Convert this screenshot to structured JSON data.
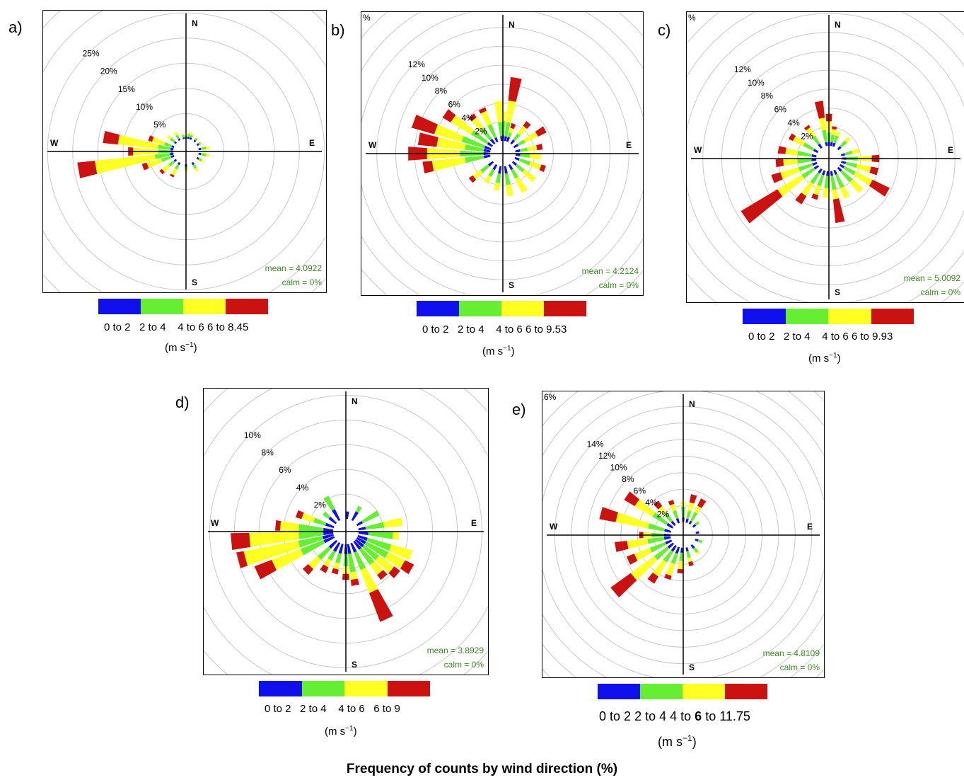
{
  "figure_title": "Frequency of counts by wind direction (%)",
  "unit_label": "(m s",
  "unit_sup": "−1",
  "unit_close": ")",
  "colors": {
    "bin1": "#1010ee",
    "bin2": "#66ee33",
    "bin3": "#ffff22",
    "bin4": "#cc1111",
    "mean_text": "#3a8a20"
  },
  "chart_data": [
    {
      "type": "windrose",
      "panel_label": "a)",
      "compass": [
        "N",
        "E",
        "S",
        "W"
      ],
      "radial_ticks": [
        "5%",
        "10%",
        "15%",
        "20%",
        "25%"
      ],
      "mean": "mean = 4.0922",
      "calm": "calm = 0%",
      "legend": [
        "0 to 2",
        "2 to 4",
        "4 to 6",
        "6 to 8.45"
      ],
      "max_pct": 27,
      "dirs": [
        {
          "deg": 0,
          "v": [
            0.3,
            0.3,
            0.2,
            0
          ]
        },
        {
          "deg": 10,
          "v": [
            0.4,
            0.6,
            0.4,
            0
          ]
        },
        {
          "deg": 20,
          "v": [
            0.4,
            0.5,
            0.3,
            0
          ]
        },
        {
          "deg": 40,
          "v": [
            0.4,
            0.4,
            0.2,
            0
          ]
        },
        {
          "deg": 60,
          "v": [
            0.4,
            0.4,
            0.2,
            0
          ]
        },
        {
          "deg": 80,
          "v": [
            0.5,
            1,
            0.6,
            0
          ]
        },
        {
          "deg": 100,
          "v": [
            0.5,
            1,
            0.6,
            0
          ]
        },
        {
          "deg": 120,
          "v": [
            0.4,
            0.6,
            0.5,
            0
          ]
        },
        {
          "deg": 150,
          "v": [
            0.5,
            0.8,
            0.6,
            0
          ]
        },
        {
          "deg": 180,
          "v": [
            0.5,
            0.6,
            0.5,
            0
          ]
        },
        {
          "deg": 210,
          "v": [
            0.5,
            1,
            1.3,
            0.4
          ]
        },
        {
          "deg": 230,
          "v": [
            0.5,
            1.3,
            1.6,
            0.6
          ]
        },
        {
          "deg": 250,
          "v": [
            0.6,
            2,
            3,
            1
          ]
        },
        {
          "deg": 260,
          "v": [
            0.7,
            3,
            12,
            3.5
          ]
        },
        {
          "deg": 270,
          "v": [
            0.5,
            2.5,
            5,
            1
          ]
        },
        {
          "deg": 280,
          "v": [
            0.6,
            2.5,
            8,
            3
          ]
        },
        {
          "deg": 290,
          "v": [
            0.5,
            1.5,
            2.5,
            0.8
          ]
        },
        {
          "deg": 310,
          "v": [
            0.4,
            1,
            0.8,
            0
          ]
        },
        {
          "deg": 330,
          "v": [
            0.4,
            0.8,
            0.6,
            0
          ]
        },
        {
          "deg": 350,
          "v": [
            0.3,
            0.5,
            0.3,
            0
          ]
        }
      ]
    },
    {
      "type": "windrose",
      "panel_label": "b)",
      "compass": [
        "N",
        "E",
        "S",
        "W"
      ],
      "radial_ticks": [
        "2%",
        "4%",
        "6%",
        "8%",
        "10%",
        "12%"
      ],
      "corner_tick": "%",
      "mean": "mean = 4.2124",
      "calm": "calm = 0%",
      "legend": [
        "0 to 2",
        "2 to 4",
        "4 to 6",
        "6 to 9.53"
      ],
      "max_pct": 14,
      "dirs": [
        {
          "deg": 0,
          "v": [
            0.6,
            1.5,
            1,
            0
          ]
        },
        {
          "deg": 10,
          "v": [
            0.5,
            1.5,
            2.3,
            2.5
          ]
        },
        {
          "deg": 20,
          "v": [
            0.5,
            0.5,
            0.5,
            0.5
          ]
        },
        {
          "deg": 40,
          "v": [
            0.5,
            0.8,
            1,
            0.6
          ]
        },
        {
          "deg": 60,
          "v": [
            0.5,
            0.8,
            1.5,
            1
          ]
        },
        {
          "deg": 80,
          "v": [
            0.5,
            0.8,
            1,
            0.6
          ]
        },
        {
          "deg": 95,
          "v": [
            0.5,
            1,
            1.2,
            0
          ]
        },
        {
          "deg": 110,
          "v": [
            0.5,
            1.2,
            1.2,
            0.5
          ]
        },
        {
          "deg": 130,
          "v": [
            0.5,
            1,
            1.5,
            0
          ]
        },
        {
          "deg": 150,
          "v": [
            0.6,
            1,
            1.7,
            0
          ]
        },
        {
          "deg": 170,
          "v": [
            0.8,
            1.2,
            1.2,
            0
          ]
        },
        {
          "deg": 190,
          "v": [
            0.8,
            1,
            0.8,
            0
          ]
        },
        {
          "deg": 210,
          "v": [
            0.6,
            0.8,
            0.8,
            0
          ]
        },
        {
          "deg": 230,
          "v": [
            0.6,
            1,
            1,
            0.5
          ]
        },
        {
          "deg": 260,
          "v": [
            0.7,
            2,
            3.5,
            1
          ]
        },
        {
          "deg": 270,
          "v": [
            0.7,
            2.5,
            3.5,
            2
          ]
        },
        {
          "deg": 280,
          "v": [
            0.7,
            2,
            3,
            2
          ]
        },
        {
          "deg": 290,
          "v": [
            0.7,
            2.5,
            3,
            2.5
          ]
        },
        {
          "deg": 305,
          "v": [
            0.6,
            2,
            2.5,
            1
          ]
        },
        {
          "deg": 320,
          "v": [
            0.6,
            1.5,
            1.3,
            0.5
          ]
        },
        {
          "deg": 335,
          "v": [
            0.5,
            1.5,
            1.5,
            0.4
          ]
        },
        {
          "deg": 355,
          "v": [
            0.5,
            1.5,
            2.2,
            0
          ]
        }
      ]
    },
    {
      "type": "windrose",
      "panel_label": "c)",
      "compass": [
        "N",
        "E",
        "S",
        "W"
      ],
      "radial_ticks": [
        "2%",
        "4%",
        "6%",
        "8%",
        "10%",
        "12%"
      ],
      "corner_tick": "%",
      "mean": "mean = 5.0092",
      "calm": "calm = 0%",
      "legend": [
        "0 to 2",
        "2 to 4",
        "4 to 6",
        "6 to 9.93"
      ],
      "max_pct": 14,
      "dirs": [
        {
          "deg": 0,
          "v": [
            0.4,
            1,
            1.2,
            0.8
          ]
        },
        {
          "deg": 10,
          "v": [
            0.4,
            0.8,
            0.6,
            0.3
          ]
        },
        {
          "deg": 20,
          "v": [
            0.4,
            0.8,
            0.5,
            0
          ]
        },
        {
          "deg": 45,
          "v": [
            0.4,
            0.8,
            0.5,
            0
          ]
        },
        {
          "deg": 75,
          "v": [
            0.4,
            0.8,
            0.8,
            0
          ]
        },
        {
          "deg": 90,
          "v": [
            0.5,
            1.2,
            1.5,
            0.8
          ]
        },
        {
          "deg": 105,
          "v": [
            0.5,
            1.2,
            1.5,
            0.8
          ]
        },
        {
          "deg": 120,
          "v": [
            0.5,
            1.3,
            2,
            2
          ]
        },
        {
          "deg": 135,
          "v": [
            0.5,
            1.5,
            1.5,
            0
          ]
        },
        {
          "deg": 155,
          "v": [
            0.5,
            1.5,
            1.2,
            0
          ]
        },
        {
          "deg": 170,
          "v": [
            0.5,
            1.5,
            1,
            2.5
          ]
        },
        {
          "deg": 185,
          "v": [
            0.5,
            1.3,
            1,
            0
          ]
        },
        {
          "deg": 200,
          "v": [
            0.5,
            1.2,
            1,
            0.5
          ]
        },
        {
          "deg": 215,
          "v": [
            0.5,
            1.3,
            1.5,
            1
          ]
        },
        {
          "deg": 235,
          "v": [
            0.5,
            1.5,
            3,
            4.5
          ]
        },
        {
          "deg": 250,
          "v": [
            0.5,
            1.5,
            2,
            1
          ]
        },
        {
          "deg": 265,
          "v": [
            0.5,
            1.5,
            1.5,
            0.8
          ]
        },
        {
          "deg": 280,
          "v": [
            0.5,
            1.5,
            1.3,
            0.8
          ]
        },
        {
          "deg": 300,
          "v": [
            0.5,
            1.2,
            1.2,
            0.5
          ]
        },
        {
          "deg": 325,
          "v": [
            0.5,
            1,
            1,
            0.3
          ]
        },
        {
          "deg": 350,
          "v": [
            0.4,
            1.3,
            1.3,
            1.8
          ]
        }
      ]
    },
    {
      "type": "windrose",
      "panel_label": "d)",
      "compass": [
        "N",
        "E",
        "S",
        "W"
      ],
      "radial_ticks": [
        "2%",
        "4%",
        "6%",
        "8%",
        "10%"
      ],
      "mean": "mean = 3.8929",
      "calm": "calm = 0%",
      "legend": [
        "0 to 2",
        "2 to 4",
        "4 to 6",
        "6 to 9"
      ],
      "max_pct": 11,
      "dirs": [
        {
          "deg": 5,
          "v": [
            0.6,
            0,
            0,
            0
          ]
        },
        {
          "deg": 30,
          "v": [
            0.8,
            0.5,
            0,
            0
          ]
        },
        {
          "deg": 60,
          "v": [
            0.5,
            1.5,
            0,
            0
          ]
        },
        {
          "deg": 80,
          "v": [
            0.6,
            1.5,
            1.5,
            0
          ]
        },
        {
          "deg": 95,
          "v": [
            0.8,
            2,
            0.5,
            0
          ]
        },
        {
          "deg": 110,
          "v": [
            0.8,
            2,
            1.8,
            0
          ]
        },
        {
          "deg": 120,
          "v": [
            0.8,
            2,
            1.5,
            0.8
          ]
        },
        {
          "deg": 130,
          "v": [
            0.8,
            1.5,
            1.5,
            0.6
          ]
        },
        {
          "deg": 140,
          "v": [
            0.8,
            1.5,
            1,
            0.5
          ]
        },
        {
          "deg": 155,
          "v": [
            0.8,
            1.5,
            2,
            2.5
          ]
        },
        {
          "deg": 170,
          "v": [
            0.8,
            1.5,
            0.6,
            0.5
          ]
        },
        {
          "deg": 180,
          "v": [
            0.8,
            1,
            0.6,
            0.5
          ]
        },
        {
          "deg": 195,
          "v": [
            0.8,
            0.8,
            0.5,
            0.4
          ]
        },
        {
          "deg": 210,
          "v": [
            0.8,
            0.8,
            0.6,
            0.5
          ]
        },
        {
          "deg": 225,
          "v": [
            0.8,
            1.2,
            1,
            0.6
          ]
        },
        {
          "deg": 245,
          "v": [
            0.9,
            2,
            2.5,
            1.5
          ]
        },
        {
          "deg": 255,
          "v": [
            0.9,
            2,
            4.5,
            0.6
          ]
        },
        {
          "deg": 265,
          "v": [
            0.8,
            2,
            4,
            1.5
          ]
        },
        {
          "deg": 275,
          "v": [
            0.8,
            2,
            1.5,
            0.4
          ]
        },
        {
          "deg": 290,
          "v": [
            0.7,
            1,
            1,
            0.5
          ]
        },
        {
          "deg": 310,
          "v": [
            0.7,
            0.6,
            0,
            0
          ]
        },
        {
          "deg": 330,
          "v": [
            1,
            1.2,
            0,
            0
          ]
        }
      ]
    },
    {
      "type": "windrose",
      "panel_label": "e)",
      "compass": [
        "N",
        "E",
        "S",
        "W"
      ],
      "radial_ticks": [
        "2%",
        "4%",
        "6%",
        "8%",
        "10%",
        "12%",
        "14%"
      ],
      "corner_tick": "6%",
      "mean": "mean = 4.8109",
      "calm": "calm = 0%",
      "legend_html": true,
      "legend": [
        "0 to 2",
        "2 to 4",
        "4 to",
        "6",
        "to 11.75"
      ],
      "max_pct": 16,
      "dirs": [
        {
          "deg": 0,
          "v": [
            0.6,
            1.3,
            0.6,
            0
          ]
        },
        {
          "deg": 15,
          "v": [
            0.5,
            1,
            1,
            1
          ]
        },
        {
          "deg": 30,
          "v": [
            0.4,
            1.2,
            0.8,
            1
          ]
        },
        {
          "deg": 50,
          "v": [
            0.4,
            0.5,
            0,
            0
          ]
        },
        {
          "deg": 80,
          "v": [
            0.4,
            0,
            0,
            0
          ]
        },
        {
          "deg": 110,
          "v": [
            0.4,
            0.5,
            0,
            0
          ]
        },
        {
          "deg": 140,
          "v": [
            0.5,
            0.6,
            0.3,
            0
          ]
        },
        {
          "deg": 165,
          "v": [
            0.5,
            0.8,
            0.5,
            0.5
          ]
        },
        {
          "deg": 185,
          "v": [
            0.6,
            1,
            1,
            0.5
          ]
        },
        {
          "deg": 200,
          "v": [
            0.8,
            1.3,
            1.5,
            0.5
          ]
        },
        {
          "deg": 215,
          "v": [
            0.8,
            1.5,
            2,
            1
          ]
        },
        {
          "deg": 230,
          "v": [
            0.8,
            2,
            3.5,
            3
          ]
        },
        {
          "deg": 245,
          "v": [
            0.8,
            2,
            2,
            1
          ]
        },
        {
          "deg": 260,
          "v": [
            0.8,
            2,
            2.5,
            1.5
          ]
        },
        {
          "deg": 270,
          "v": [
            0.8,
            1.5,
            1,
            0.5
          ]
        },
        {
          "deg": 285,
          "v": [
            0.8,
            2,
            4,
            2
          ]
        },
        {
          "deg": 305,
          "v": [
            0.8,
            2,
            2.5,
            1.5
          ]
        },
        {
          "deg": 320,
          "v": [
            0.6,
            1.2,
            1,
            0.8
          ]
        },
        {
          "deg": 340,
          "v": [
            0.6,
            1,
            0.8,
            0.5
          ]
        }
      ]
    }
  ]
}
